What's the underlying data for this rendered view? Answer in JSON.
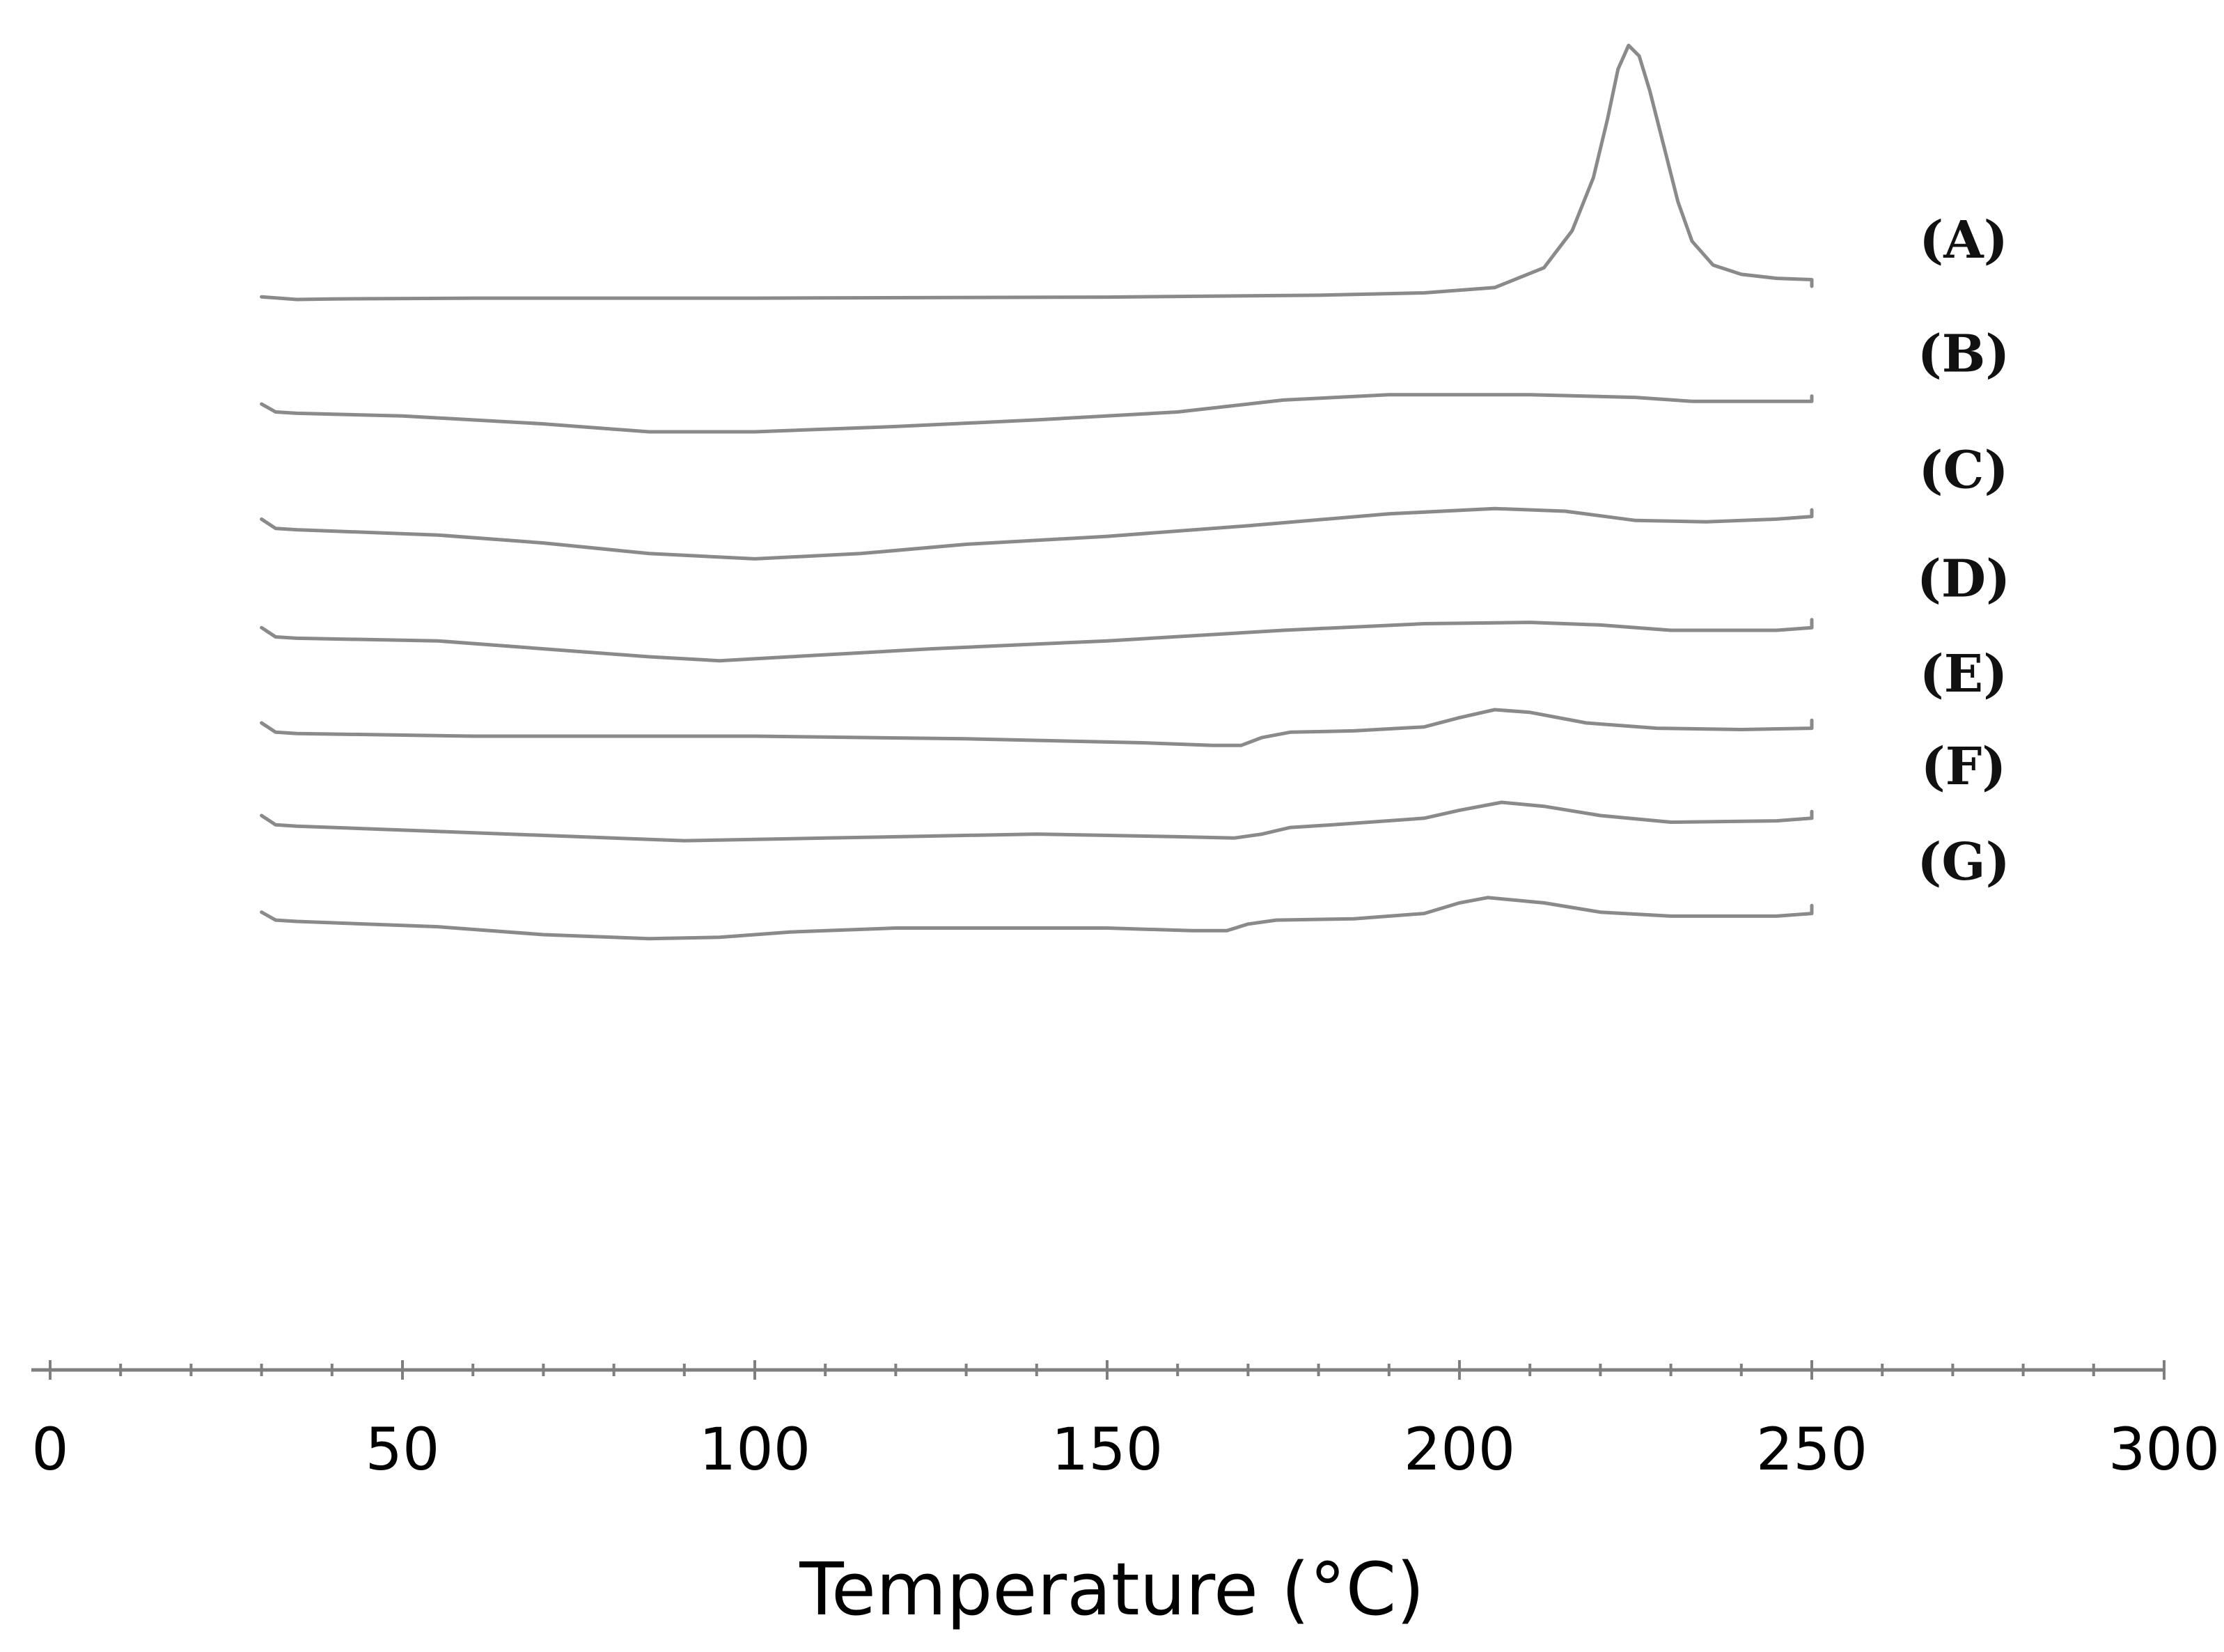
{
  "chart_data": {
    "type": "line",
    "title": "",
    "xlabel": "Temperature (°C)",
    "ylabel": "",
    "xlim": [
      0,
      300
    ],
    "x_ticks": [
      0,
      50,
      100,
      150,
      200,
      250,
      300
    ],
    "minor_tick_step": 10,
    "grid": false,
    "legend": "right-side labels",
    "series": [
      {
        "name": "(A)",
        "offset": 0,
        "points": [
          [
            30,
            0.1
          ],
          [
            35,
            0.0
          ],
          [
            40,
            0.02
          ],
          [
            60,
            0.05
          ],
          [
            100,
            0.05
          ],
          [
            150,
            0.09
          ],
          [
            180,
            0.16
          ],
          [
            195,
            0.25
          ],
          [
            205,
            0.45
          ],
          [
            212,
            1.2
          ],
          [
            216,
            2.6
          ],
          [
            219,
            4.6
          ],
          [
            221,
            6.8
          ],
          [
            222.5,
            8.7
          ],
          [
            224,
            9.6
          ],
          [
            225.5,
            9.2
          ],
          [
            227,
            7.9
          ],
          [
            229,
            5.8
          ],
          [
            231,
            3.7
          ],
          [
            233,
            2.2
          ],
          [
            236,
            1.3
          ],
          [
            240,
            0.95
          ],
          [
            245,
            0.8
          ],
          [
            250,
            0.75
          ],
          [
            250,
            0.5
          ]
        ]
      },
      {
        "name": "(B)",
        "offset": -4.3,
        "points": [
          [
            30,
            0.35
          ],
          [
            32,
            0.05
          ],
          [
            35,
            0.0
          ],
          [
            50,
            -0.1
          ],
          [
            70,
            -0.4
          ],
          [
            85,
            -0.7
          ],
          [
            100,
            -0.7
          ],
          [
            120,
            -0.5
          ],
          [
            140,
            -0.25
          ],
          [
            160,
            0.05
          ],
          [
            175,
            0.5
          ],
          [
            190,
            0.7
          ],
          [
            210,
            0.7
          ],
          [
            225,
            0.6
          ],
          [
            233,
            0.45
          ],
          [
            240,
            0.45
          ],
          [
            250,
            0.45
          ],
          [
            250,
            0.65
          ]
        ]
      },
      {
        "name": "(C)",
        "offset": -8.7,
        "points": [
          [
            30,
            0.4
          ],
          [
            32,
            0.05
          ],
          [
            35,
            0.0
          ],
          [
            55,
            -0.2
          ],
          [
            70,
            -0.5
          ],
          [
            85,
            -0.9
          ],
          [
            100,
            -1.1
          ],
          [
            115,
            -0.9
          ],
          [
            130,
            -0.55
          ],
          [
            150,
            -0.25
          ],
          [
            170,
            0.15
          ],
          [
            190,
            0.6
          ],
          [
            205,
            0.8
          ],
          [
            215,
            0.7
          ],
          [
            225,
            0.35
          ],
          [
            235,
            0.3
          ],
          [
            245,
            0.4
          ],
          [
            250,
            0.5
          ],
          [
            250,
            0.75
          ]
        ]
      },
      {
        "name": "(D)",
        "offset": -12.8,
        "points": [
          [
            30,
            0.4
          ],
          [
            32,
            0.05
          ],
          [
            35,
            0.0
          ],
          [
            55,
            -0.1
          ],
          [
            70,
            -0.4
          ],
          [
            85,
            -0.7
          ],
          [
            95,
            -0.85
          ],
          [
            105,
            -0.7
          ],
          [
            125,
            -0.4
          ],
          [
            150,
            -0.1
          ],
          [
            175,
            0.3
          ],
          [
            195,
            0.55
          ],
          [
            210,
            0.6
          ],
          [
            220,
            0.5
          ],
          [
            230,
            0.3
          ],
          [
            245,
            0.3
          ],
          [
            250,
            0.4
          ],
          [
            250,
            0.7
          ]
        ]
      },
      {
        "name": "(E)",
        "offset": -16.4,
        "points": [
          [
            30,
            0.4
          ],
          [
            32,
            0.05
          ],
          [
            35,
            0.0
          ],
          [
            60,
            -0.1
          ],
          [
            100,
            -0.1
          ],
          [
            130,
            -0.2
          ],
          [
            155,
            -0.35
          ],
          [
            165,
            -0.45
          ],
          [
            169,
            -0.45
          ],
          [
            172,
            -0.15
          ],
          [
            176,
            0.05
          ],
          [
            185,
            0.1
          ],
          [
            195,
            0.25
          ],
          [
            200,
            0.6
          ],
          [
            205,
            0.9
          ],
          [
            210,
            0.8
          ],
          [
            218,
            0.4
          ],
          [
            228,
            0.2
          ],
          [
            240,
            0.15
          ],
          [
            250,
            0.2
          ],
          [
            250,
            0.5
          ]
        ]
      },
      {
        "name": "(F)",
        "offset": -19.9,
        "points": [
          [
            30,
            0.4
          ],
          [
            32,
            0.05
          ],
          [
            35,
            0.0
          ],
          [
            55,
            -0.2
          ],
          [
            75,
            -0.4
          ],
          [
            90,
            -0.55
          ],
          [
            110,
            -0.45
          ],
          [
            140,
            -0.3
          ],
          [
            160,
            -0.4
          ],
          [
            168,
            -0.45
          ],
          [
            172,
            -0.3
          ],
          [
            176,
            -0.05
          ],
          [
            182,
            0.05
          ],
          [
            195,
            0.3
          ],
          [
            200,
            0.6
          ],
          [
            206,
            0.9
          ],
          [
            212,
            0.75
          ],
          [
            220,
            0.4
          ],
          [
            230,
            0.15
          ],
          [
            245,
            0.2
          ],
          [
            250,
            0.3
          ],
          [
            250,
            0.55
          ]
        ]
      },
      {
        "name": "(G)",
        "offset": -23.5,
        "points": [
          [
            30,
            0.35
          ],
          [
            32,
            0.05
          ],
          [
            35,
            0.0
          ],
          [
            55,
            -0.2
          ],
          [
            70,
            -0.5
          ],
          [
            85,
            -0.65
          ],
          [
            95,
            -0.6
          ],
          [
            105,
            -0.4
          ],
          [
            120,
            -0.25
          ],
          [
            150,
            -0.25
          ],
          [
            162,
            -0.35
          ],
          [
            167,
            -0.35
          ],
          [
            170,
            -0.1
          ],
          [
            174,
            0.05
          ],
          [
            185,
            0.1
          ],
          [
            195,
            0.3
          ],
          [
            200,
            0.7
          ],
          [
            204,
            0.9
          ],
          [
            212,
            0.7
          ],
          [
            220,
            0.35
          ],
          [
            230,
            0.2
          ],
          [
            245,
            0.2
          ],
          [
            250,
            0.3
          ],
          [
            250,
            0.6
          ]
        ]
      }
    ]
  }
}
